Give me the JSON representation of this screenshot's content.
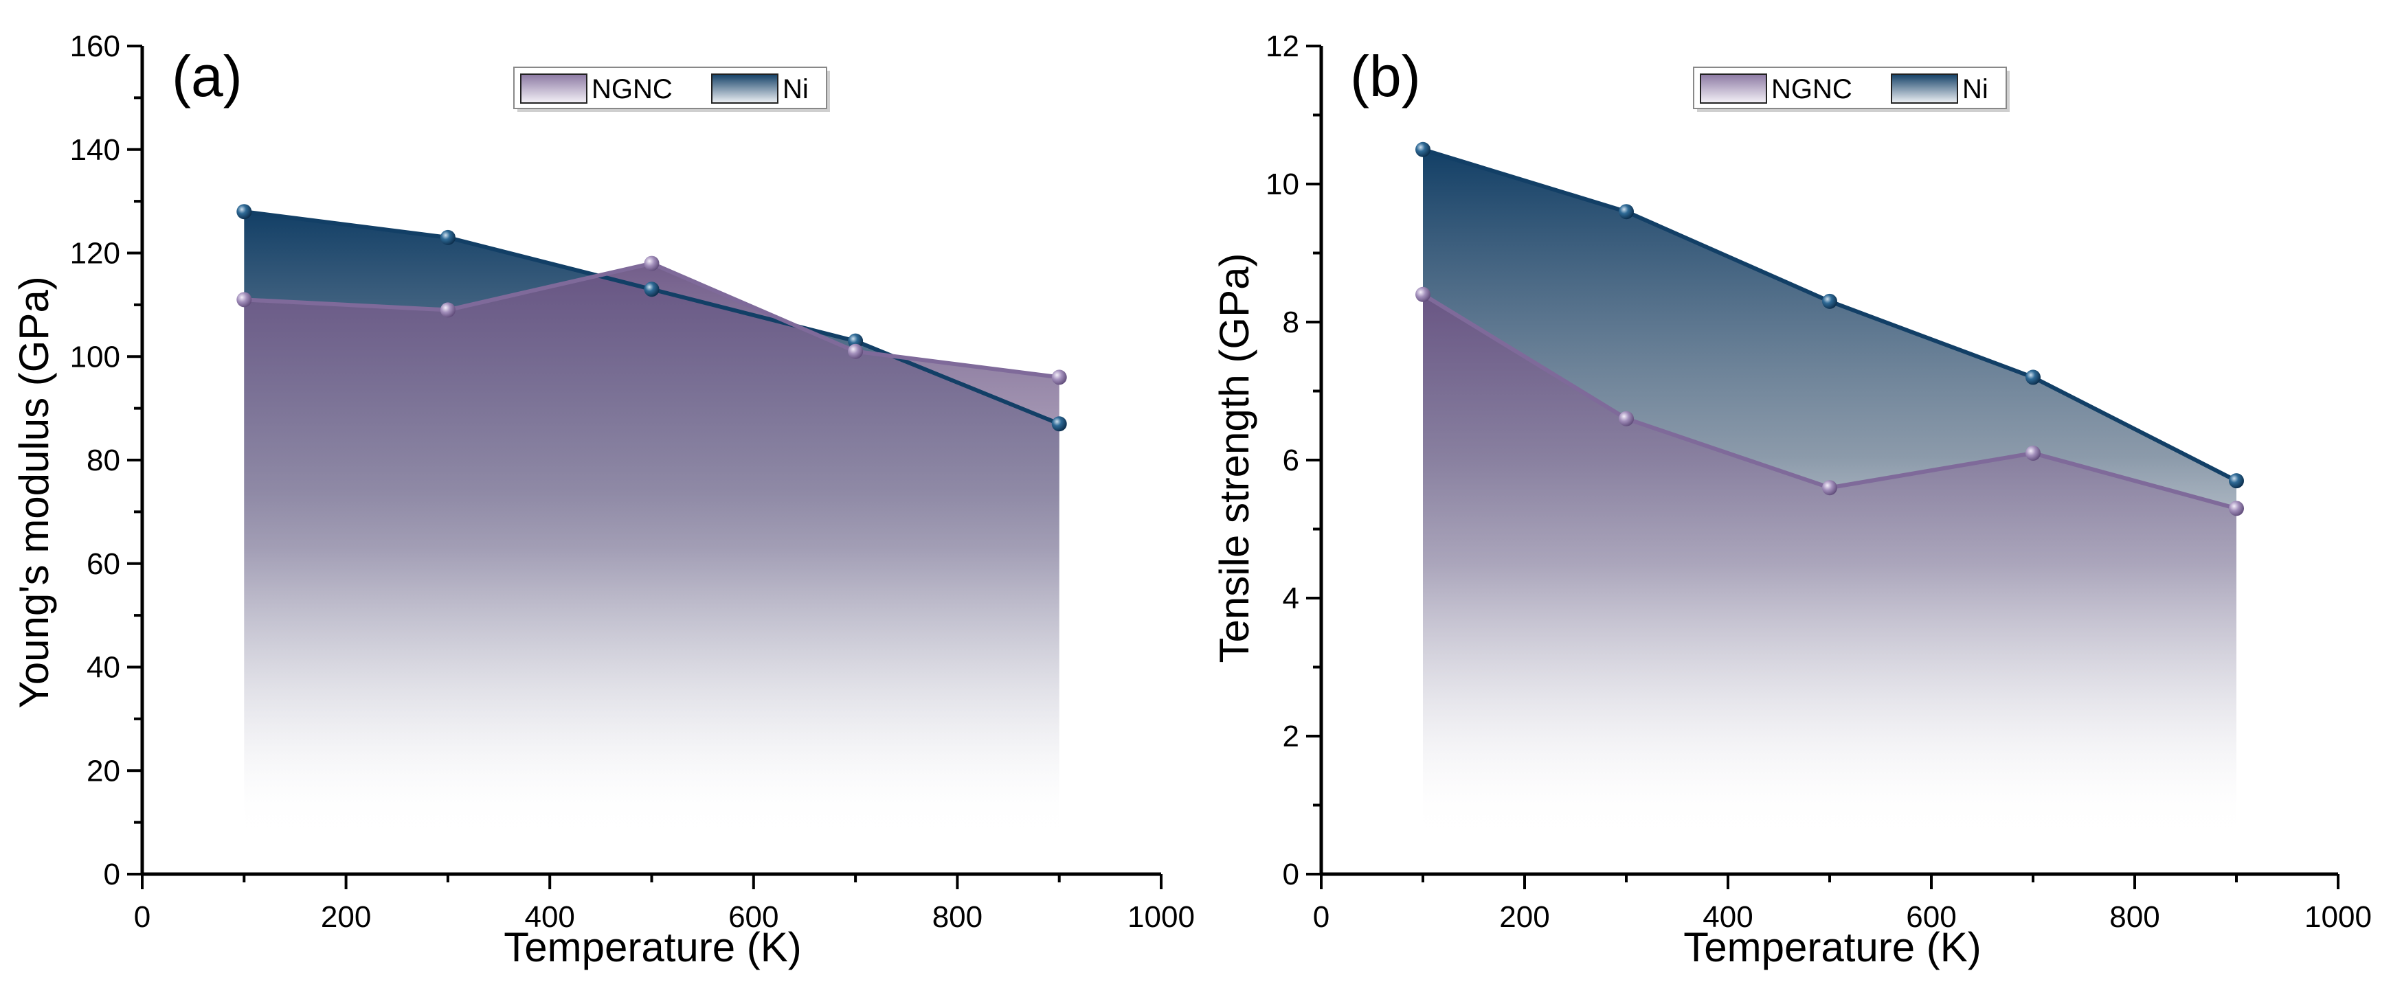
{
  "chart_data": [
    {
      "type": "area",
      "panel_label": "(a)",
      "xlabel": "Temperature (K)",
      "ylabel": "Young's modulus (GPa)",
      "xlim": [
        0,
        1000
      ],
      "ylim": [
        0,
        160
      ],
      "xticks": [
        0,
        200,
        400,
        600,
        800,
        1000
      ],
      "yticks": [
        0,
        20,
        40,
        60,
        80,
        100,
        120,
        140,
        160
      ],
      "x": [
        100,
        300,
        500,
        700,
        900
      ],
      "series": [
        {
          "name": "NGNC",
          "color": "#7f6a9a",
          "values": [
            111,
            109,
            118,
            101,
            96
          ]
        },
        {
          "name": "Ni",
          "color": "#123f66",
          "values": [
            128,
            123,
            113,
            103,
            87
          ]
        }
      ],
      "legend": [
        "NGNC",
        "Ni"
      ],
      "legend_position": "top-center"
    },
    {
      "type": "area",
      "panel_label": "(b)",
      "xlabel": "Temperature (K)",
      "ylabel": "Tensile strength  (GPa)",
      "xlim": [
        0,
        1000
      ],
      "ylim": [
        0,
        12
      ],
      "xticks": [
        0,
        200,
        400,
        600,
        800,
        1000
      ],
      "yticks": [
        0,
        2,
        4,
        6,
        8,
        10,
        12
      ],
      "x": [
        100,
        300,
        500,
        700,
        900
      ],
      "series": [
        {
          "name": "NGNC",
          "color": "#7f6a9a",
          "values": [
            8.4,
            6.6,
            5.6,
            6.1,
            5.3
          ]
        },
        {
          "name": "Ni",
          "color": "#123f66",
          "values": [
            10.5,
            9.6,
            8.3,
            7.2,
            5.7
          ]
        }
      ],
      "legend": [
        "NGNC",
        "Ni"
      ],
      "legend_position": "top-center"
    }
  ]
}
